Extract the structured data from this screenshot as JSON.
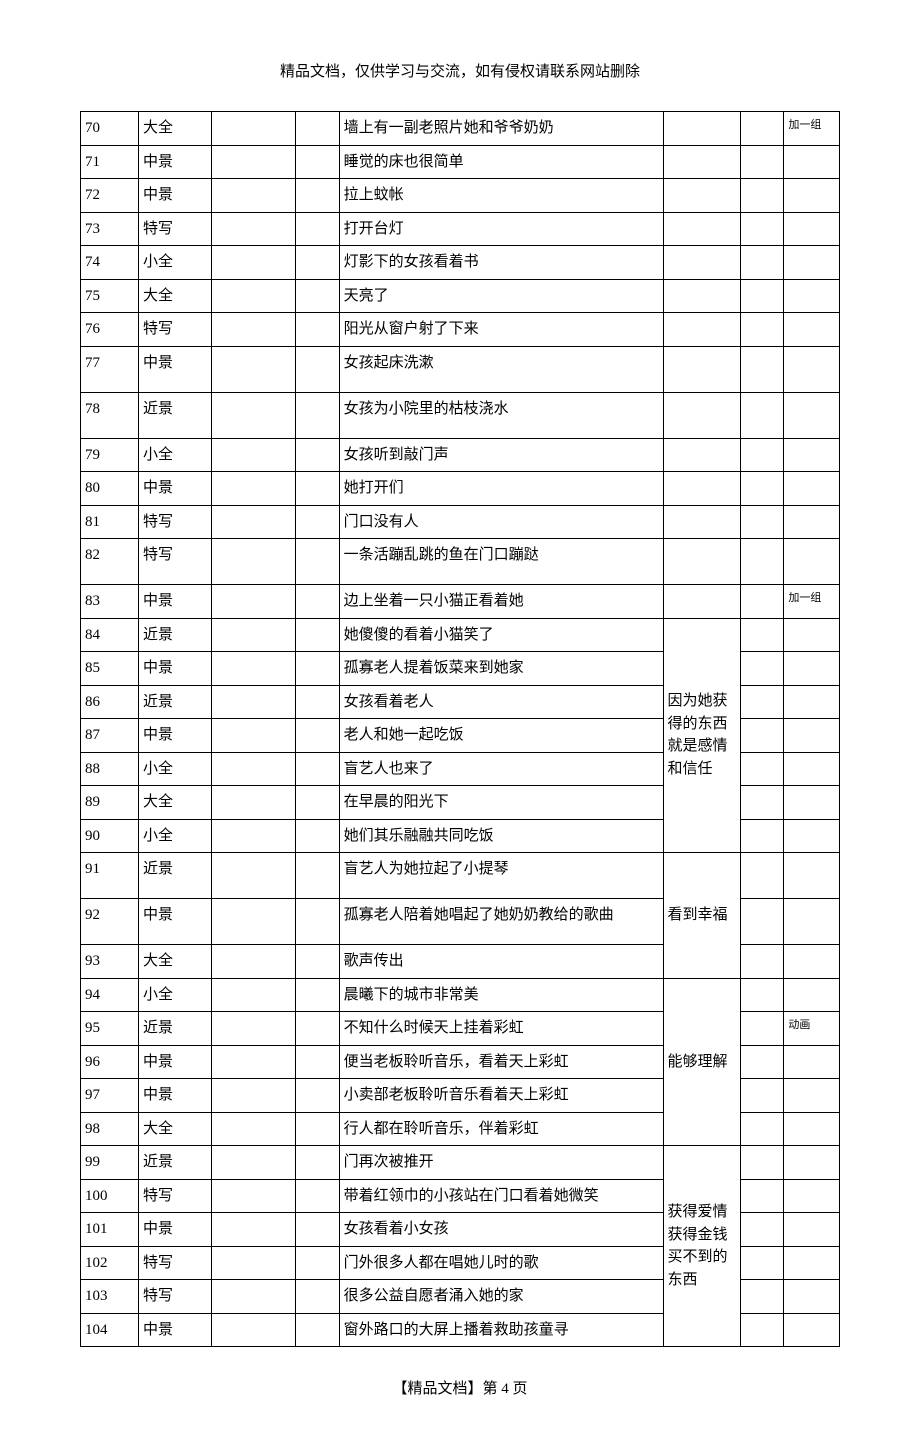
{
  "header_note": "精品文档，仅供学习与交流，如有侵权请联系网站删除",
  "footer": "【精品文档】第 4 页",
  "columns": {
    "widths": [
      "48px",
      "60px",
      "70px",
      "36px",
      "268px",
      "64px",
      "36px",
      "46px"
    ]
  },
  "note_groups": [
    {
      "start": 84,
      "end": 90,
      "text": "因为她获得的东西就是感情和信任"
    },
    {
      "start": 91,
      "end": 93,
      "text": "看到幸福"
    },
    {
      "start": 94,
      "end": 98,
      "text": "能够理解"
    },
    {
      "start": 99,
      "end": 104,
      "text": "获得爱情\n获得金钱买不到的东西"
    }
  ],
  "rows": [
    {
      "num": "70",
      "shot": "大全",
      "desc": "墙上有一副老照片她和爷爷奶奶",
      "remark": "加一组",
      "remark_small": true
    },
    {
      "num": "71",
      "shot": "中景",
      "desc": "睡觉的床也很简单"
    },
    {
      "num": "72",
      "shot": "中景",
      "desc": "拉上蚊帐"
    },
    {
      "num": "73",
      "shot": "特写",
      "desc": "打开台灯"
    },
    {
      "num": "74",
      "shot": "小全",
      "desc": "灯影下的女孩看着书"
    },
    {
      "num": "75",
      "shot": "大全",
      "desc": "天亮了"
    },
    {
      "num": "76",
      "shot": "特写",
      "desc": "阳光从窗户射了下来"
    },
    {
      "num": "77",
      "shot": "中景",
      "desc": "女孩起床洗漱",
      "tall": true
    },
    {
      "num": "78",
      "shot": "近景",
      "desc": "女孩为小院里的枯枝浇水",
      "tall": true
    },
    {
      "num": "79",
      "shot": "小全",
      "desc": "女孩听到敲门声"
    },
    {
      "num": "80",
      "shot": "中景",
      "desc": "她打开们"
    },
    {
      "num": "81",
      "shot": "特写",
      "desc": "门口没有人"
    },
    {
      "num": "82",
      "shot": "特写",
      "desc": "一条活蹦乱跳的鱼在门口蹦跶",
      "tall": true
    },
    {
      "num": "83",
      "shot": "中景",
      "desc": "边上坐着一只小猫正看着她",
      "remark": "加一组",
      "remark_small": true
    },
    {
      "num": "84",
      "shot": "近景",
      "desc": "她傻傻的看着小猫笑了"
    },
    {
      "num": "85",
      "shot": "中景",
      "desc": "孤寡老人提着饭菜来到她家"
    },
    {
      "num": "86",
      "shot": "近景",
      "desc": "女孩看着老人"
    },
    {
      "num": "87",
      "shot": "中景",
      "desc": "老人和她一起吃饭"
    },
    {
      "num": "88",
      "shot": "小全",
      "desc": "盲艺人也来了"
    },
    {
      "num": "89",
      "shot": "大全",
      "desc": "在早晨的阳光下"
    },
    {
      "num": "90",
      "shot": "小全",
      "desc": "她们其乐融融共同吃饭"
    },
    {
      "num": "91",
      "shot": "近景",
      "desc": "盲艺人为她拉起了小提琴",
      "tall": true
    },
    {
      "num": "92",
      "shot": "中景",
      "desc": "孤寡老人陪着她唱起了她奶奶教给的歌曲",
      "tall": true
    },
    {
      "num": "93",
      "shot": "大全",
      "desc": "歌声传出"
    },
    {
      "num": "94",
      "shot": "小全",
      "desc": "晨曦下的城市非常美"
    },
    {
      "num": "95",
      "shot": "近景",
      "desc": "不知什么时候天上挂着彩虹",
      "remark": "动画",
      "remark_small": true
    },
    {
      "num": "96",
      "shot": "中景",
      "desc": "便当老板聆听音乐，看着天上彩虹"
    },
    {
      "num": "97",
      "shot": "中景",
      "desc": "小卖部老板聆听音乐看着天上彩虹"
    },
    {
      "num": "98",
      "shot": "大全",
      "desc": "行人都在聆听音乐，伴着彩虹"
    },
    {
      "num": "99",
      "shot": "近景",
      "desc": "门再次被推开"
    },
    {
      "num": "100",
      "shot": "特写",
      "desc": "带着红领巾的小孩站在门口看着她微笑"
    },
    {
      "num": "101",
      "shot": "中景",
      "desc": "女孩看着小女孩"
    },
    {
      "num": "102",
      "shot": "特写",
      "desc": "门外很多人都在唱她儿时的歌"
    },
    {
      "num": "103",
      "shot": "特写",
      "desc": "很多公益自愿者涌入她的家"
    },
    {
      "num": "104",
      "shot": "中景",
      "desc": "窗外路口的大屏上播着救助孩童寻"
    }
  ]
}
